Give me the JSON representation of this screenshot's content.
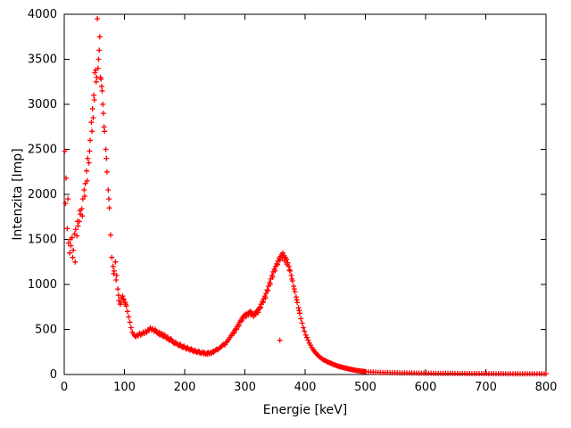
{
  "chart_data": {
    "type": "scatter",
    "title": "",
    "xlabel": "Energie [keV]",
    "ylabel": "Intenzita [Imp]",
    "xlim": [
      0,
      800
    ],
    "ylim": [
      0,
      4000
    ],
    "xticks": [
      0,
      100,
      200,
      300,
      400,
      500,
      600,
      700,
      800
    ],
    "yticks": [
      0,
      500,
      1000,
      1500,
      2000,
      2500,
      3000,
      3500,
      4000
    ],
    "grid": false,
    "legend": "none",
    "marker": "plus",
    "marker_color": "#ff0000",
    "border_color": "#000000",
    "points": [
      [
        1,
        2480
      ],
      [
        2,
        1900
      ],
      [
        3,
        2180
      ],
      [
        5,
        1620
      ],
      [
        6,
        1950
      ],
      [
        7,
        1460
      ],
      [
        9,
        1350
      ],
      [
        10,
        1500
      ],
      [
        11,
        1430
      ],
      [
        13,
        1520
      ],
      [
        14,
        1300
      ],
      [
        15,
        1380
      ],
      [
        17,
        1560
      ],
      [
        18,
        1250
      ],
      [
        19,
        1610
      ],
      [
        21,
        1540
      ],
      [
        22,
        1700
      ],
      [
        23,
        1650
      ],
      [
        25,
        1700
      ],
      [
        26,
        1820
      ],
      [
        27,
        1780
      ],
      [
        29,
        1840
      ],
      [
        30,
        1760
      ],
      [
        31,
        1950
      ],
      [
        33,
        2050
      ],
      [
        34,
        1980
      ],
      [
        35,
        2120
      ],
      [
        37,
        2260
      ],
      [
        38,
        2150
      ],
      [
        39,
        2400
      ],
      [
        41,
        2350
      ],
      [
        42,
        2480
      ],
      [
        43,
        2600
      ],
      [
        45,
        2800
      ],
      [
        46,
        2700
      ],
      [
        47,
        2950
      ],
      [
        48,
        2850
      ],
      [
        49,
        3100
      ],
      [
        50,
        3050
      ],
      [
        51,
        3350
      ],
      [
        52,
        3380
      ],
      [
        53,
        3250
      ],
      [
        54,
        3300
      ],
      [
        55,
        3950
      ],
      [
        56,
        3400
      ],
      [
        57,
        3500
      ],
      [
        58,
        3600
      ],
      [
        59,
        3750
      ],
      [
        60,
        3300
      ],
      [
        61,
        3280
      ],
      [
        62,
        3200
      ],
      [
        63,
        3150
      ],
      [
        64,
        3000
      ],
      [
        65,
        2900
      ],
      [
        66,
        2750
      ],
      [
        67,
        2700
      ],
      [
        69,
        2500
      ],
      [
        70,
        2400
      ],
      [
        71,
        2250
      ],
      [
        73,
        2050
      ],
      [
        74,
        1950
      ],
      [
        75,
        1850
      ],
      [
        77,
        1550
      ],
      [
        79,
        1300
      ],
      [
        81,
        1200
      ],
      [
        82,
        1120
      ],
      [
        83,
        1150
      ],
      [
        85,
        1250
      ],
      [
        86,
        1050
      ],
      [
        87,
        1100
      ],
      [
        89,
        950
      ],
      [
        90,
        880
      ],
      [
        91,
        820
      ],
      [
        93,
        780
      ],
      [
        94,
        800
      ],
      [
        95,
        850
      ],
      [
        97,
        870
      ],
      [
        98,
        840
      ],
      [
        99,
        830
      ],
      [
        101,
        800
      ],
      [
        102,
        780
      ],
      [
        103,
        760
      ],
      [
        105,
        700
      ],
      [
        107,
        640
      ],
      [
        109,
        580
      ],
      [
        111,
        520
      ],
      [
        113,
        470
      ],
      [
        115,
        450
      ],
      [
        117,
        430
      ],
      [
        119,
        420
      ],
      [
        121,
        440
      ],
      [
        123,
        430
      ],
      [
        125,
        460
      ],
      [
        127,
        440
      ],
      [
        129,
        450
      ],
      [
        131,
        470
      ],
      [
        133,
        455
      ],
      [
        135,
        480
      ],
      [
        137,
        465
      ],
      [
        139,
        490
      ],
      [
        141,
        500
      ],
      [
        143,
        520
      ],
      [
        145,
        495
      ],
      [
        147,
        510
      ],
      [
        149,
        480
      ],
      [
        151,
        500
      ],
      [
        152,
        485
      ],
      [
        153,
        470
      ],
      [
        155,
        460
      ],
      [
        157,
        450
      ],
      [
        158,
        470
      ],
      [
        159,
        440
      ],
      [
        161,
        455
      ],
      [
        163,
        430
      ],
      [
        164,
        445
      ],
      [
        165,
        420
      ],
      [
        167,
        440
      ],
      [
        169,
        410
      ],
      [
        171,
        400
      ],
      [
        172,
        415
      ],
      [
        173,
        390
      ],
      [
        175,
        380
      ],
      [
        177,
        395
      ],
      [
        178,
        385
      ],
      [
        179,
        370
      ],
      [
        181,
        355
      ],
      [
        183,
        345
      ],
      [
        184,
        350
      ],
      [
        185,
        360
      ],
      [
        187,
        340
      ],
      [
        189,
        330
      ],
      [
        191,
        320
      ],
      [
        192,
        330
      ],
      [
        193,
        335
      ],
      [
        195,
        310
      ],
      [
        197,
        300
      ],
      [
        198,
        305
      ],
      [
        199,
        315
      ],
      [
        201,
        295
      ],
      [
        203,
        285
      ],
      [
        204,
        290
      ],
      [
        205,
        300
      ],
      [
        207,
        280
      ],
      [
        209,
        270
      ],
      [
        211,
        285
      ],
      [
        212,
        275
      ],
      [
        213,
        265
      ],
      [
        215,
        255
      ],
      [
        217,
        270
      ],
      [
        218,
        258
      ],
      [
        219,
        250
      ],
      [
        221,
        245
      ],
      [
        223,
        260
      ],
      [
        224,
        252
      ],
      [
        225,
        240
      ],
      [
        227,
        235
      ],
      [
        229,
        250
      ],
      [
        231,
        230
      ],
      [
        232,
        245
      ],
      [
        233,
        240
      ],
      [
        235,
        225
      ],
      [
        237,
        235
      ],
      [
        238,
        228
      ],
      [
        239,
        245
      ],
      [
        241,
        230
      ],
      [
        243,
        250
      ],
      [
        244,
        235
      ],
      [
        245,
        240
      ],
      [
        247,
        260
      ],
      [
        248,
        248
      ],
      [
        249,
        255
      ],
      [
        251,
        270
      ],
      [
        253,
        280
      ],
      [
        255,
        275
      ],
      [
        257,
        290
      ],
      [
        259,
        300
      ],
      [
        261,
        310
      ],
      [
        263,
        325
      ],
      [
        265,
        340
      ],
      [
        267,
        330
      ],
      [
        269,
        355
      ],
      [
        271,
        370
      ],
      [
        273,
        390
      ],
      [
        275,
        410
      ],
      [
        277,
        430
      ],
      [
        279,
        450
      ],
      [
        281,
        470
      ],
      [
        282,
        460
      ],
      [
        283,
        490
      ],
      [
        285,
        510
      ],
      [
        286,
        500
      ],
      [
        287,
        530
      ],
      [
        289,
        555
      ],
      [
        290,
        540
      ],
      [
        291,
        580
      ],
      [
        293,
        600
      ],
      [
        294,
        590
      ],
      [
        295,
        620
      ],
      [
        297,
        640
      ],
      [
        298,
        630
      ],
      [
        299,
        655
      ],
      [
        301,
        670
      ],
      [
        302,
        640
      ],
      [
        303,
        660
      ],
      [
        305,
        680
      ],
      [
        306,
        660
      ],
      [
        307,
        690
      ],
      [
        309,
        700
      ],
      [
        310,
        660
      ],
      [
        311,
        685
      ],
      [
        313,
        670
      ],
      [
        314,
        645
      ],
      [
        315,
        660
      ],
      [
        317,
        680
      ],
      [
        318,
        665
      ],
      [
        319,
        700
      ],
      [
        321,
        710
      ],
      [
        322,
        690
      ],
      [
        323,
        730
      ],
      [
        325,
        750
      ],
      [
        326,
        740
      ],
      [
        327,
        780
      ],
      [
        329,
        810
      ],
      [
        330,
        800
      ],
      [
        331,
        840
      ],
      [
        333,
        870
      ],
      [
        334,
        850
      ],
      [
        335,
        900
      ],
      [
        337,
        940
      ],
      [
        338,
        930
      ],
      [
        339,
        980
      ],
      [
        341,
        1020
      ],
      [
        342,
        1000
      ],
      [
        343,
        1060
      ],
      [
        345,
        1100
      ],
      [
        346,
        1080
      ],
      [
        347,
        1140
      ],
      [
        349,
        1170
      ],
      [
        350,
        1150
      ],
      [
        351,
        1200
      ],
      [
        353,
        1230
      ],
      [
        354,
        1220
      ],
      [
        355,
        1260
      ],
      [
        357,
        1290
      ],
      [
        358,
        1270
      ],
      [
        359,
        1310
      ],
      [
        361,
        1330
      ],
      [
        362,
        1290
      ],
      [
        363,
        1350
      ],
      [
        365,
        1320
      ],
      [
        366,
        1260
      ],
      [
        367,
        1300
      ],
      [
        369,
        1280
      ],
      [
        370,
        1220
      ],
      [
        371,
        1240
      ],
      [
        373,
        1200
      ],
      [
        374,
        1160
      ],
      [
        375,
        1150
      ],
      [
        377,
        1100
      ],
      [
        378,
        1060
      ],
      [
        379,
        1040
      ],
      [
        381,
        980
      ],
      [
        382,
        950
      ],
      [
        383,
        920
      ],
      [
        385,
        860
      ],
      [
        386,
        830
      ],
      [
        387,
        800
      ],
      [
        389,
        740
      ],
      [
        390,
        710
      ],
      [
        391,
        680
      ],
      [
        393,
        620
      ],
      [
        395,
        570
      ],
      [
        397,
        520
      ],
      [
        399,
        480
      ],
      [
        358,
        380
      ],
      [
        401,
        440
      ],
      [
        403,
        410
      ],
      [
        405,
        380
      ],
      [
        407,
        350
      ],
      [
        409,
        325
      ],
      [
        411,
        300
      ],
      [
        413,
        280
      ],
      [
        415,
        260
      ],
      [
        417,
        245
      ],
      [
        419,
        230
      ],
      [
        421,
        215
      ],
      [
        423,
        200
      ],
      [
        425,
        190
      ],
      [
        427,
        180
      ],
      [
        429,
        170
      ],
      [
        431,
        160
      ],
      [
        433,
        155
      ],
      [
        435,
        150
      ],
      [
        437,
        140
      ],
      [
        439,
        135
      ],
      [
        441,
        130
      ],
      [
        443,
        125
      ],
      [
        445,
        118
      ],
      [
        447,
        112
      ],
      [
        449,
        108
      ],
      [
        451,
        102
      ],
      [
        453,
        98
      ],
      [
        455,
        92
      ],
      [
        457,
        88
      ],
      [
        459,
        85
      ],
      [
        461,
        80
      ],
      [
        463,
        78
      ],
      [
        465,
        74
      ],
      [
        467,
        70
      ],
      [
        469,
        68
      ],
      [
        471,
        64
      ],
      [
        473,
        62
      ],
      [
        475,
        58
      ],
      [
        477,
        56
      ],
      [
        479,
        52
      ],
      [
        481,
        50
      ],
      [
        483,
        48
      ],
      [
        485,
        45
      ],
      [
        487,
        44
      ],
      [
        489,
        42
      ],
      [
        491,
        40
      ],
      [
        493,
        38
      ],
      [
        495,
        36
      ],
      [
        497,
        35
      ],
      [
        499,
        33
      ],
      [
        501,
        32
      ],
      [
        505,
        30
      ],
      [
        509,
        28
      ],
      [
        513,
        27
      ],
      [
        517,
        26
      ],
      [
        521,
        25
      ],
      [
        525,
        24
      ],
      [
        529,
        23
      ],
      [
        533,
        22
      ],
      [
        537,
        22
      ],
      [
        541,
        21
      ],
      [
        545,
        20
      ],
      [
        549,
        20
      ],
      [
        553,
        19
      ],
      [
        557,
        19
      ],
      [
        561,
        18
      ],
      [
        565,
        18
      ],
      [
        569,
        17
      ],
      [
        573,
        17
      ],
      [
        577,
        16
      ],
      [
        581,
        16
      ],
      [
        585,
        16
      ],
      [
        589,
        15
      ],
      [
        593,
        15
      ],
      [
        597,
        15
      ],
      [
        601,
        14
      ],
      [
        605,
        14
      ],
      [
        609,
        14
      ],
      [
        613,
        13
      ],
      [
        617,
        13
      ],
      [
        621,
        13
      ],
      [
        625,
        13
      ],
      [
        629,
        12
      ],
      [
        633,
        12
      ],
      [
        637,
        12
      ],
      [
        641,
        12
      ],
      [
        645,
        12
      ],
      [
        649,
        11
      ],
      [
        653,
        11
      ],
      [
        657,
        11
      ],
      [
        661,
        11
      ],
      [
        665,
        11
      ],
      [
        669,
        10
      ],
      [
        673,
        10
      ],
      [
        677,
        10
      ],
      [
        681,
        10
      ],
      [
        685,
        10
      ],
      [
        689,
        10
      ],
      [
        693,
        10
      ],
      [
        697,
        10
      ],
      [
        701,
        10
      ],
      [
        705,
        9
      ],
      [
        709,
        9
      ],
      [
        713,
        9
      ],
      [
        717,
        9
      ],
      [
        721,
        9
      ],
      [
        725,
        9
      ],
      [
        729,
        9
      ],
      [
        733,
        9
      ],
      [
        737,
        8
      ],
      [
        741,
        8
      ],
      [
        745,
        8
      ],
      [
        749,
        8
      ],
      [
        753,
        8
      ],
      [
        757,
        8
      ],
      [
        761,
        8
      ],
      [
        765,
        8
      ],
      [
        769,
        8
      ],
      [
        773,
        8
      ],
      [
        777,
        8
      ],
      [
        781,
        8
      ],
      [
        785,
        8
      ],
      [
        789,
        8
      ],
      [
        793,
        8
      ],
      [
        797,
        8
      ],
      [
        800,
        8
      ]
    ]
  }
}
